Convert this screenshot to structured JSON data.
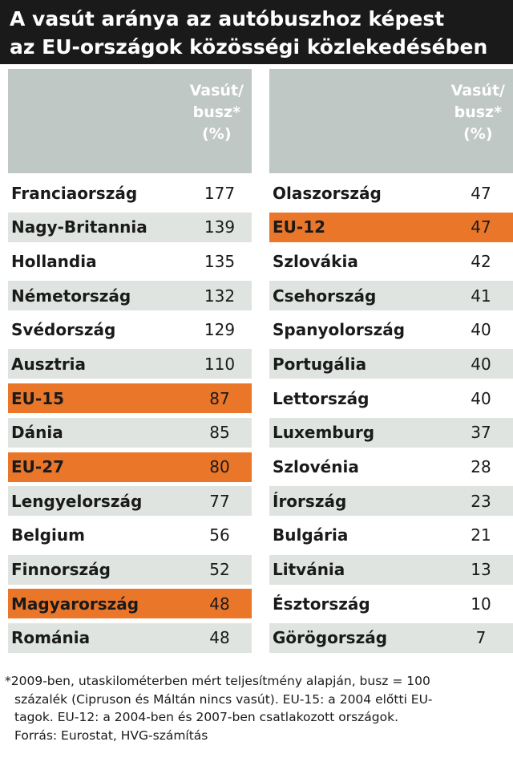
{
  "title": {
    "line1": "A vasút aránya az autóbuszhoz képest",
    "line2": "az EU-országok közösségi közlekedésében"
  },
  "header": {
    "line1": "Vasút/",
    "line2": "busz*",
    "line3": "(%)"
  },
  "footnote": {
    "line1": "*2009-ben, utaskilométerben mért teljesítmény alapján, busz = 100",
    "line2": "százalék  (Cipruson és Máltán nincs vasút). EU-15: a 2004 előtti EU-",
    "line3": "tagok. EU-12: a 2004-ben és 2007-ben csatlakozott országok.",
    "line4": "Forrás: Eurostat, HVG-számítás"
  },
  "colors": {
    "title_bg": "#1a1a1a",
    "header_bg": "#bfc8c4",
    "shade_row": "#dfe4e1",
    "highlight": "#ea7629"
  },
  "chart_data": {
    "type": "table",
    "columns": [
      "Vasút/busz* (%)"
    ],
    "left": [
      {
        "name": "Franciaország",
        "value": 177,
        "highlight": false
      },
      {
        "name": "Nagy-Britannia",
        "value": 139,
        "highlight": false
      },
      {
        "name": "Hollandia",
        "value": 135,
        "highlight": false
      },
      {
        "name": "Németország",
        "value": 132,
        "highlight": false
      },
      {
        "name": "Svédország",
        "value": 129,
        "highlight": false
      },
      {
        "name": "Ausztria",
        "value": 110,
        "highlight": false
      },
      {
        "name": "EU-15",
        "value": 87,
        "highlight": true
      },
      {
        "name": "Dánia",
        "value": 85,
        "highlight": false
      },
      {
        "name": "EU-27",
        "value": 80,
        "highlight": true
      },
      {
        "name": "Lengyelország",
        "value": 77,
        "highlight": false
      },
      {
        "name": "Belgium",
        "value": 56,
        "highlight": false
      },
      {
        "name": "Finnország",
        "value": 52,
        "highlight": false
      },
      {
        "name": "Magyarország",
        "value": 48,
        "highlight": true
      },
      {
        "name": "Románia",
        "value": 48,
        "highlight": false
      }
    ],
    "right": [
      {
        "name": "Olaszország",
        "value": 47,
        "highlight": false
      },
      {
        "name": "EU-12",
        "value": 47,
        "highlight": true
      },
      {
        "name": "Szlovákia",
        "value": 42,
        "highlight": false
      },
      {
        "name": "Csehország",
        "value": 41,
        "highlight": false
      },
      {
        "name": "Spanyolország",
        "value": 40,
        "highlight": false
      },
      {
        "name": "Portugália",
        "value": 40,
        "highlight": false
      },
      {
        "name": "Lettország",
        "value": 40,
        "highlight": false
      },
      {
        "name": "Luxemburg",
        "value": 37,
        "highlight": false
      },
      {
        "name": "Szlovénia",
        "value": 28,
        "highlight": false
      },
      {
        "name": "Írország",
        "value": 23,
        "highlight": false
      },
      {
        "name": "Bulgária",
        "value": 21,
        "highlight": false
      },
      {
        "name": "Litvánia",
        "value": 13,
        "highlight": false
      },
      {
        "name": "Észtország",
        "value": 10,
        "highlight": false
      },
      {
        "name": "Görögország",
        "value": 7,
        "highlight": false
      }
    ]
  }
}
